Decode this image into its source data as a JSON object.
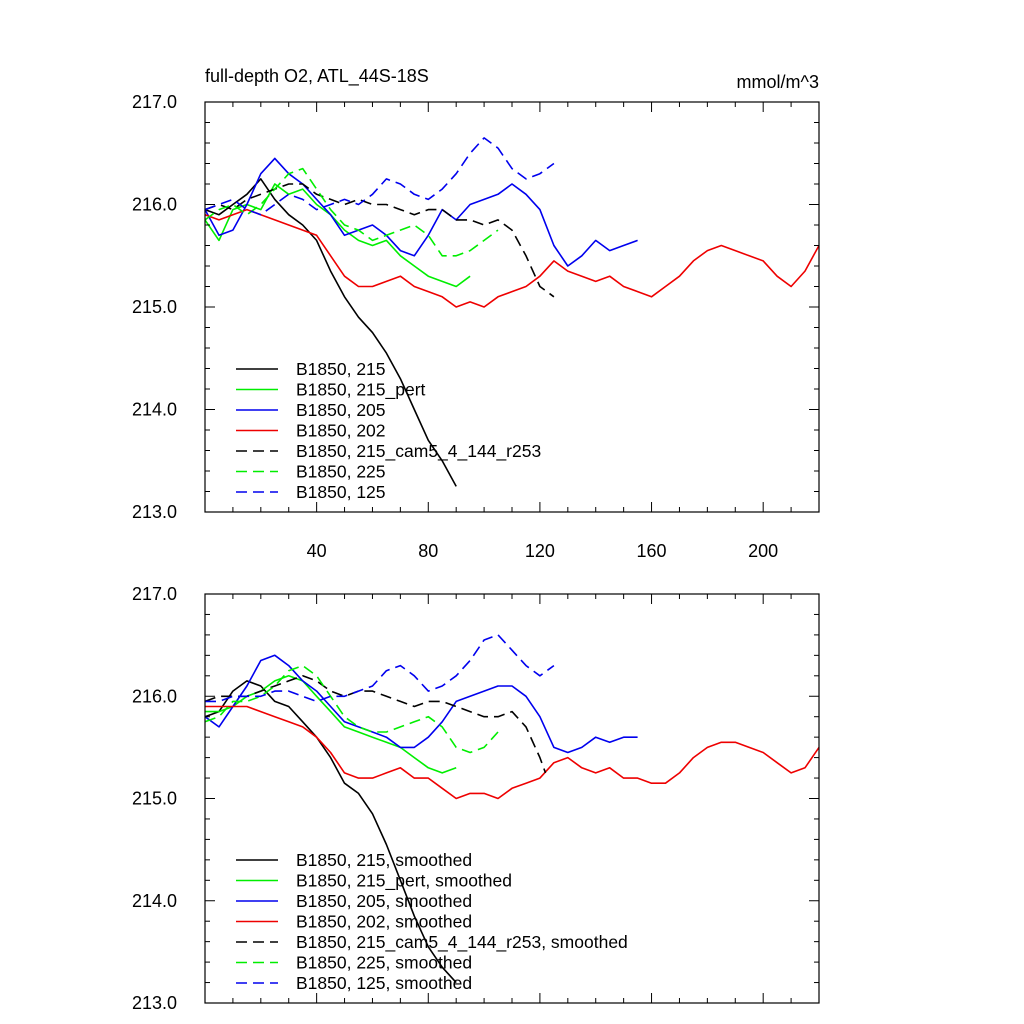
{
  "figure": {
    "title": "full-depth O2, ATL_44S-18S",
    "units": "mmol/m^3"
  },
  "chart_data": [
    {
      "type": "line",
      "title": "full-depth O2, ATL_44S-18S",
      "units_label": "mmol/m^3",
      "xlabel": "",
      "ylabel": "",
      "xlim": [
        0,
        220
      ],
      "ylim": [
        213.0,
        217.0
      ],
      "x_ticks": [
        40,
        80,
        120,
        160,
        200
      ],
      "x_tick_labels": [
        "40",
        "80",
        "120",
        "160",
        "200"
      ],
      "y_ticks": [
        213.0,
        214.0,
        215.0,
        216.0,
        217.0
      ],
      "y_tick_labels": [
        "213.0",
        "214.0",
        "215.0",
        "216.0",
        "217.0"
      ],
      "grid": false,
      "legend_position": "lower-left",
      "series": [
        {
          "name": "B1850, 215",
          "color": "#000000",
          "dash": "solid",
          "x": [
            0,
            5,
            10,
            15,
            20,
            25,
            30,
            35,
            40,
            45,
            50,
            55,
            60,
            65,
            70,
            75,
            80,
            85,
            90
          ],
          "y": [
            215.95,
            215.9,
            216.0,
            216.1,
            216.25,
            216.05,
            215.9,
            215.8,
            215.65,
            215.35,
            215.1,
            214.9,
            214.75,
            214.55,
            214.3,
            214.0,
            213.7,
            213.5,
            213.25
          ]
        },
        {
          "name": "B1850, 215_pert",
          "color": "#00ee00",
          "dash": "solid",
          "x": [
            0,
            5,
            10,
            15,
            20,
            25,
            30,
            35,
            40,
            45,
            50,
            55,
            60,
            65,
            70,
            75,
            80,
            85,
            90,
            95
          ],
          "y": [
            215.85,
            215.65,
            215.95,
            216.0,
            215.95,
            216.2,
            216.1,
            216.15,
            216.0,
            215.9,
            215.75,
            215.65,
            215.6,
            215.65,
            215.5,
            215.4,
            215.3,
            215.25,
            215.2,
            215.3
          ]
        },
        {
          "name": "B1850, 205",
          "color": "#0000ee",
          "dash": "solid",
          "x": [
            0,
            5,
            10,
            15,
            20,
            25,
            30,
            35,
            40,
            45,
            50,
            55,
            60,
            65,
            70,
            75,
            80,
            85,
            90,
            95,
            100,
            105,
            110,
            115,
            120,
            125,
            130,
            135,
            140,
            145,
            150,
            155
          ],
          "y": [
            215.95,
            215.7,
            215.75,
            216.0,
            216.3,
            216.45,
            216.3,
            216.2,
            216.05,
            215.9,
            215.7,
            215.75,
            215.8,
            215.7,
            215.55,
            215.5,
            215.7,
            215.95,
            215.85,
            216.0,
            216.05,
            216.1,
            216.2,
            216.1,
            215.95,
            215.6,
            215.4,
            215.5,
            215.65,
            215.55,
            215.6,
            215.65
          ]
        },
        {
          "name": "B1850, 202",
          "color": "#ee0000",
          "dash": "solid",
          "x": [
            0,
            5,
            10,
            15,
            20,
            25,
            30,
            35,
            40,
            45,
            50,
            55,
            60,
            65,
            70,
            75,
            80,
            85,
            90,
            95,
            100,
            105,
            110,
            115,
            120,
            125,
            130,
            135,
            140,
            145,
            150,
            155,
            160,
            165,
            170,
            175,
            180,
            185,
            190,
            195,
            200,
            205,
            210,
            215,
            220
          ],
          "y": [
            215.9,
            215.85,
            215.9,
            215.95,
            215.9,
            215.85,
            215.8,
            215.75,
            215.7,
            215.5,
            215.3,
            215.2,
            215.2,
            215.25,
            215.3,
            215.2,
            215.15,
            215.1,
            215.0,
            215.05,
            215.0,
            215.1,
            215.15,
            215.2,
            215.3,
            215.45,
            215.35,
            215.3,
            215.25,
            215.3,
            215.2,
            215.15,
            215.1,
            215.2,
            215.3,
            215.45,
            215.55,
            215.6,
            215.55,
            215.5,
            215.45,
            215.3,
            215.2,
            215.35,
            215.6
          ]
        },
        {
          "name": "B1850, 215_cam5_4_144_r253",
          "color": "#000000",
          "dash": "dashed",
          "x": [
            0,
            5,
            10,
            15,
            20,
            25,
            30,
            35,
            40,
            45,
            50,
            55,
            60,
            65,
            70,
            75,
            80,
            85,
            90,
            95,
            100,
            105,
            110,
            115,
            120,
            125
          ],
          "y": [
            215.95,
            216.0,
            215.95,
            216.05,
            216.1,
            216.15,
            216.2,
            216.2,
            216.1,
            216.05,
            216.0,
            216.05,
            216.0,
            216.0,
            215.95,
            215.9,
            215.95,
            215.95,
            215.85,
            215.85,
            215.8,
            215.85,
            215.75,
            215.5,
            215.2,
            215.1
          ]
        },
        {
          "name": "B1850, 225",
          "color": "#00ee00",
          "dash": "dashed",
          "x": [
            0,
            5,
            10,
            15,
            20,
            25,
            30,
            35,
            40,
            45,
            50,
            55,
            60,
            65,
            70,
            75,
            80,
            85,
            90,
            95,
            100,
            105
          ],
          "y": [
            215.85,
            215.95,
            216.0,
            215.9,
            216.0,
            216.15,
            216.3,
            216.35,
            216.15,
            215.95,
            215.8,
            215.75,
            215.65,
            215.7,
            215.75,
            215.8,
            215.7,
            215.5,
            215.5,
            215.55,
            215.65,
            215.75
          ]
        },
        {
          "name": "B1850, 125",
          "color": "#0000ee",
          "dash": "dashed",
          "x": [
            0,
            5,
            10,
            15,
            20,
            25,
            30,
            35,
            40,
            45,
            50,
            55,
            60,
            65,
            70,
            75,
            80,
            85,
            90,
            95,
            100,
            105,
            110,
            115,
            120,
            125
          ],
          "y": [
            215.95,
            216.0,
            216.05,
            215.95,
            215.9,
            216.0,
            216.1,
            216.05,
            215.95,
            216.0,
            216.05,
            216.0,
            216.1,
            216.25,
            216.2,
            216.1,
            216.05,
            216.15,
            216.3,
            216.5,
            216.65,
            216.55,
            216.35,
            216.25,
            216.3,
            216.4
          ]
        }
      ]
    },
    {
      "type": "line",
      "title": "",
      "xlabel": "",
      "ylabel": "",
      "xlim": [
        0,
        220
      ],
      "ylim": [
        213.0,
        217.0
      ],
      "x_ticks": [
        40,
        80,
        120,
        160,
        200
      ],
      "x_tick_labels": [],
      "y_ticks": [
        213.0,
        214.0,
        215.0,
        216.0,
        217.0
      ],
      "y_tick_labels": [
        "213.0",
        "214.0",
        "215.0",
        "216.0",
        "217.0"
      ],
      "grid": false,
      "legend_position": "lower-left",
      "series": [
        {
          "name": "B1850, 215, smoothed",
          "color": "#000000",
          "dash": "solid",
          "x": [
            0,
            5,
            10,
            15,
            20,
            25,
            30,
            35,
            40,
            45,
            50,
            55,
            60,
            65,
            70,
            75,
            80,
            85,
            90
          ],
          "y": [
            215.8,
            215.85,
            216.05,
            216.15,
            216.1,
            215.95,
            215.9,
            215.75,
            215.6,
            215.4,
            215.15,
            215.05,
            214.85,
            214.55,
            214.2,
            213.85,
            213.55,
            213.35,
            213.2
          ]
        },
        {
          "name": "B1850, 215_pert, smoothed",
          "color": "#00ee00",
          "dash": "solid",
          "x": [
            0,
            5,
            10,
            15,
            20,
            25,
            30,
            35,
            40,
            45,
            50,
            55,
            60,
            65,
            70,
            75,
            80,
            85,
            90
          ],
          "y": [
            215.85,
            215.85,
            215.9,
            216.0,
            216.05,
            216.15,
            216.2,
            216.15,
            216.0,
            215.85,
            215.7,
            215.65,
            215.6,
            215.55,
            215.5,
            215.4,
            215.3,
            215.25,
            215.3
          ]
        },
        {
          "name": "B1850, 205, smoothed",
          "color": "#0000ee",
          "dash": "solid",
          "x": [
            0,
            5,
            10,
            15,
            20,
            25,
            30,
            35,
            40,
            45,
            50,
            55,
            60,
            65,
            70,
            75,
            80,
            85,
            90,
            95,
            100,
            105,
            110,
            115,
            120,
            125,
            130,
            135,
            140,
            145,
            150,
            155
          ],
          "y": [
            215.8,
            215.7,
            215.9,
            216.1,
            216.35,
            216.4,
            216.3,
            216.15,
            216.05,
            215.9,
            215.75,
            215.7,
            215.65,
            215.6,
            215.5,
            215.5,
            215.6,
            215.75,
            215.95,
            216.0,
            216.05,
            216.1,
            216.1,
            216.0,
            215.8,
            215.5,
            215.45,
            215.5,
            215.6,
            215.55,
            215.6,
            215.6
          ]
        },
        {
          "name": "B1850, 202, smoothed",
          "color": "#ee0000",
          "dash": "solid",
          "x": [
            0,
            5,
            10,
            15,
            20,
            25,
            30,
            35,
            40,
            45,
            50,
            55,
            60,
            65,
            70,
            75,
            80,
            85,
            90,
            95,
            100,
            105,
            110,
            115,
            120,
            125,
            130,
            135,
            140,
            145,
            150,
            155,
            160,
            165,
            170,
            175,
            180,
            185,
            190,
            195,
            200,
            205,
            210,
            215,
            220
          ],
          "y": [
            215.9,
            215.9,
            215.9,
            215.9,
            215.85,
            215.8,
            215.75,
            215.7,
            215.6,
            215.45,
            215.25,
            215.2,
            215.2,
            215.25,
            215.3,
            215.2,
            215.2,
            215.1,
            215.0,
            215.05,
            215.05,
            215.0,
            215.1,
            215.15,
            215.2,
            215.35,
            215.4,
            215.3,
            215.25,
            215.3,
            215.2,
            215.2,
            215.15,
            215.15,
            215.25,
            215.4,
            215.5,
            215.55,
            215.55,
            215.5,
            215.45,
            215.35,
            215.25,
            215.3,
            215.5
          ]
        },
        {
          "name": "B1850, 215_cam5_4_144_r253, smoothed",
          "color": "#000000",
          "dash": "dashed",
          "x": [
            0,
            5,
            10,
            15,
            20,
            25,
            30,
            35,
            40,
            45,
            50,
            55,
            60,
            65,
            70,
            75,
            80,
            85,
            90,
            95,
            100,
            105,
            110,
            115,
            120,
            122
          ],
          "y": [
            215.95,
            216.0,
            216.0,
            216.0,
            216.05,
            216.1,
            216.15,
            216.2,
            216.15,
            216.05,
            216.0,
            216.05,
            216.05,
            216.0,
            215.95,
            215.9,
            215.95,
            215.95,
            215.9,
            215.85,
            215.8,
            215.8,
            215.85,
            215.7,
            215.4,
            215.25
          ]
        },
        {
          "name": "B1850, 225, smoothed",
          "color": "#00ee00",
          "dash": "dashed",
          "x": [
            0,
            5,
            10,
            15,
            20,
            25,
            30,
            35,
            40,
            45,
            50,
            55,
            60,
            65,
            70,
            75,
            80,
            85,
            90,
            95,
            100,
            105
          ],
          "y": [
            215.75,
            215.8,
            215.95,
            215.95,
            216.0,
            216.1,
            216.25,
            216.3,
            216.2,
            216.0,
            215.8,
            215.7,
            215.65,
            215.65,
            215.7,
            215.75,
            215.8,
            215.7,
            215.5,
            215.45,
            215.5,
            215.65
          ]
        },
        {
          "name": "B1850, 125, smoothed",
          "color": "#0000ee",
          "dash": "dashed",
          "x": [
            0,
            5,
            10,
            15,
            20,
            25,
            30,
            35,
            40,
            45,
            50,
            55,
            60,
            65,
            70,
            75,
            80,
            85,
            90,
            95,
            100,
            105,
            110,
            115,
            120,
            125
          ],
          "y": [
            215.95,
            215.95,
            216.0,
            216.0,
            216.0,
            216.05,
            216.05,
            216.0,
            215.95,
            216.0,
            216.0,
            216.05,
            216.1,
            216.25,
            216.3,
            216.2,
            216.05,
            216.1,
            216.2,
            216.35,
            216.55,
            216.6,
            216.45,
            216.3,
            216.2,
            216.3
          ]
        }
      ]
    }
  ]
}
